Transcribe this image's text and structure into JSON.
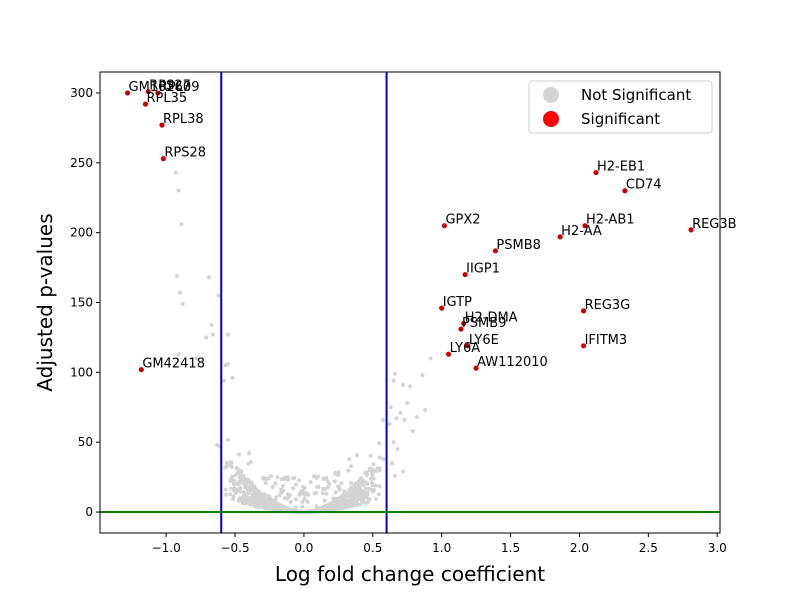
{
  "chart_data": {
    "type": "scatter",
    "xlabel": "Log fold change coefficient",
    "ylabel": "Adjusted p-values",
    "xlim": [
      -1.48,
      3.02
    ],
    "ylim": [
      -15,
      315
    ],
    "x_ticks": [
      -1.0,
      -0.5,
      0.0,
      0.5,
      1.0,
      1.5,
      2.0,
      2.5,
      3.0
    ],
    "x_tick_labels": [
      "−1.0",
      "−0.5",
      "0.0",
      "0.5",
      "1.0",
      "1.5",
      "2.0",
      "2.5",
      "3.0"
    ],
    "y_ticks": [
      0,
      50,
      100,
      150,
      200,
      250,
      300
    ],
    "y_tick_labels": [
      "0",
      "50",
      "100",
      "150",
      "200",
      "250",
      "300"
    ],
    "vertical_lines": [
      {
        "x": -0.6,
        "color": "#0000cc"
      },
      {
        "x": 0.6,
        "color": "#0000cc"
      }
    ],
    "horizontal_lines": [
      {
        "y": 0,
        "color": "#008000"
      }
    ],
    "legend": {
      "placement": "top-right",
      "entries": [
        {
          "label": "Not Significant",
          "color": "#d3d3d3"
        },
        {
          "label": "Significant",
          "color": "#ff0000"
        }
      ]
    },
    "series": [
      {
        "name": "Significant",
        "color": "#cc0000",
        "points": [
          {
            "label": "GM10260",
            "x": -1.28,
            "y": 300
          },
          {
            "label": "RPS27",
            "x": -1.13,
            "y": 301
          },
          {
            "label": "RPL39",
            "x": -1.06,
            "y": 300
          },
          {
            "label": "RPL35",
            "x": -1.15,
            "y": 292
          },
          {
            "label": "RPL38",
            "x": -1.03,
            "y": 277
          },
          {
            "label": "RPS28",
            "x": -1.02,
            "y": 253
          },
          {
            "label": "GM42418",
            "x": -1.18,
            "y": 102
          },
          {
            "label": "H2-EB1",
            "x": 2.12,
            "y": 243
          },
          {
            "label": "CD74",
            "x": 2.33,
            "y": 230
          },
          {
            "label": "GPX2",
            "x": 1.02,
            "y": 205
          },
          {
            "label": "H2-AB1",
            "x": 2.04,
            "y": 205
          },
          {
            "label": "REG3B",
            "x": 2.81,
            "y": 202
          },
          {
            "label": "H2-AA",
            "x": 1.86,
            "y": 197
          },
          {
            "label": "PSMB8",
            "x": 1.39,
            "y": 187
          },
          {
            "label": "IIGP1",
            "x": 1.17,
            "y": 170
          },
          {
            "label": "IGTP",
            "x": 1.0,
            "y": 146
          },
          {
            "label": "REG3G",
            "x": 2.03,
            "y": 144
          },
          {
            "label": "H2-DMA",
            "x": 1.16,
            "y": 135
          },
          {
            "label": "PSMB9",
            "x": 1.14,
            "y": 131
          },
          {
            "label": "LY6E",
            "x": 1.19,
            "y": 119
          },
          {
            "label": "IFITM3",
            "x": 2.03,
            "y": 119
          },
          {
            "label": "LY6A",
            "x": 1.05,
            "y": 113
          },
          {
            "label": "AW112010",
            "x": 1.25,
            "y": 103
          }
        ]
      },
      {
        "name": "Not Significant",
        "color": "#d3d3d3",
        "points": [
          {
            "x": -0.93,
            "y": 243
          },
          {
            "x": -0.91,
            "y": 230
          },
          {
            "x": -0.89,
            "y": 206
          },
          {
            "x": -0.92,
            "y": 169
          },
          {
            "x": -0.9,
            "y": 157
          },
          {
            "x": -0.88,
            "y": 149
          },
          {
            "x": -0.69,
            "y": 168
          },
          {
            "x": -0.62,
            "y": 155
          },
          {
            "x": -0.67,
            "y": 134
          },
          {
            "x": -0.66,
            "y": 127
          },
          {
            "x": -0.55,
            "y": 127
          },
          {
            "x": -0.71,
            "y": 125
          },
          {
            "x": -0.91,
            "y": 113
          },
          {
            "x": -0.78,
            "y": 110
          },
          {
            "x": -0.55,
            "y": 106
          },
          {
            "x": -0.57,
            "y": 105
          },
          {
            "x": -0.52,
            "y": 96
          },
          {
            "x": -0.58,
            "y": 94
          },
          {
            "x": -0.63,
            "y": 48
          },
          {
            "x": -0.61,
            "y": 47
          },
          {
            "x": 0.66,
            "y": 99
          },
          {
            "x": 0.72,
            "y": 91
          },
          {
            "x": 0.77,
            "y": 90
          },
          {
            "x": 0.86,
            "y": 98
          },
          {
            "x": 0.92,
            "y": 110
          },
          {
            "x": 0.65,
            "y": 94
          },
          {
            "x": 0.62,
            "y": 63
          },
          {
            "x": 0.67,
            "y": 67
          },
          {
            "x": 0.7,
            "y": 71
          },
          {
            "x": 0.73,
            "y": 66
          },
          {
            "x": 0.79,
            "y": 58
          },
          {
            "x": 0.82,
            "y": 68
          },
          {
            "x": 0.68,
            "y": 45
          },
          {
            "x": 0.65,
            "y": 50
          },
          {
            "x": 0.64,
            "y": 35
          },
          {
            "x": 0.72,
            "y": 29
          },
          {
            "x": 0.66,
            "y": 26
          },
          {
            "x": 0.88,
            "y": 73
          },
          {
            "x": 0.75,
            "y": 78
          },
          {
            "x": 0.63,
            "y": 75
          }
        ]
      }
    ]
  }
}
